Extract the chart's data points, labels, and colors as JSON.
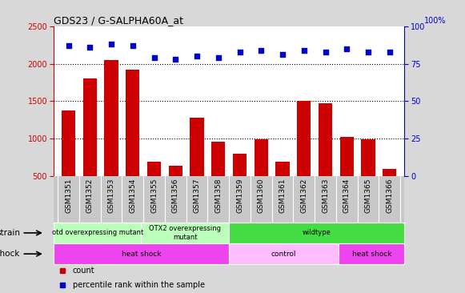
{
  "title": "GDS23 / G-SALPHA60A_at",
  "samples": [
    "GSM1351",
    "GSM1352",
    "GSM1353",
    "GSM1354",
    "GSM1355",
    "GSM1356",
    "GSM1357",
    "GSM1358",
    "GSM1359",
    "GSM1360",
    "GSM1361",
    "GSM1362",
    "GSM1363",
    "GSM1364",
    "GSM1365",
    "GSM1366"
  ],
  "counts": [
    1370,
    1800,
    2050,
    1920,
    690,
    630,
    1280,
    960,
    790,
    990,
    690,
    1500,
    1470,
    1020,
    990,
    590
  ],
  "percentiles": [
    87,
    86,
    88,
    87,
    79,
    78,
    80,
    79,
    83,
    84,
    81,
    84,
    83,
    85,
    83,
    83
  ],
  "ylim_left": [
    500,
    2500
  ],
  "ylim_right": [
    0,
    100
  ],
  "yticks_left": [
    500,
    1000,
    1500,
    2000,
    2500
  ],
  "yticks_right": [
    0,
    25,
    50,
    75,
    100
  ],
  "bar_color": "#cc0000",
  "dot_color": "#0000cc",
  "strain_groups": [
    {
      "label": "otd overexpressing mutant",
      "start": 0,
      "end": 4,
      "color": "#bbffbb"
    },
    {
      "label": "OTX2 overexpressing\nmutant",
      "start": 4,
      "end": 8,
      "color": "#bbffbb"
    },
    {
      "label": "wildtype",
      "start": 8,
      "end": 16,
      "color": "#44dd44"
    }
  ],
  "shock_groups": [
    {
      "label": "heat shock",
      "start": 0,
      "end": 8,
      "color": "#ee44ee"
    },
    {
      "label": "control",
      "start": 8,
      "end": 13,
      "color": "#ffbbff"
    },
    {
      "label": "heat shock",
      "start": 13,
      "end": 16,
      "color": "#ee44ee"
    }
  ],
  "strain_label": "strain",
  "shock_label": "shock",
  "legend_count_label": "count",
  "legend_pct_label": "percentile rank within the sample",
  "background_color": "#d8d8d8",
  "plot_bg_color": "#ffffff",
  "xtick_bg_color": "#c8c8c8"
}
